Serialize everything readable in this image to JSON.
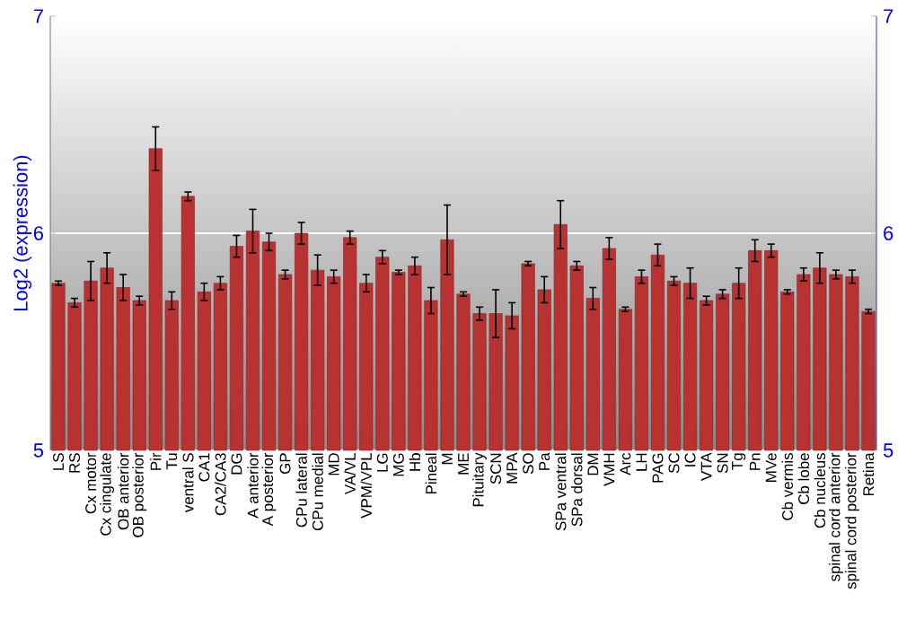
{
  "chart_data": {
    "type": "bar",
    "ylabel": "Log2 (expression)",
    "categories": [
      "LS",
      "RS",
      "Cx motor",
      "Cx cingulate",
      "OB anterior",
      "OB posterior",
      "Pir",
      "Tu",
      "ventral S",
      "CA1",
      "CA2/CA3",
      "DG",
      "A anterior",
      "A posterior",
      "GP",
      "CPu lateral",
      "CPu medial",
      "MD",
      "VA/VL",
      "VPM/VPL",
      "LG",
      "MG",
      "Hb",
      "Pineal",
      "M",
      "ME",
      "Pituitary",
      "SCN",
      "MPA",
      "SO",
      "Pa",
      "SPa ventral",
      "SPa dorsal",
      "DM",
      "VMH",
      "Arc",
      "LH",
      "PAG",
      "SC",
      "IC",
      "VTA",
      "SN",
      "Tg",
      "Pn",
      "MVe",
      "Cb vermis",
      "Cb lobe",
      "Cb nucleus",
      "spinal cord anterior",
      "spinal cord posterior",
      "Retina"
    ],
    "values": [
      5.77,
      5.68,
      5.78,
      5.84,
      5.75,
      5.69,
      6.39,
      5.69,
      6.17,
      5.73,
      5.77,
      5.94,
      6.01,
      5.96,
      5.81,
      6.0,
      5.83,
      5.8,
      5.98,
      5.77,
      5.89,
      5.82,
      5.85,
      5.69,
      5.97,
      5.72,
      5.63,
      5.63,
      5.62,
      5.86,
      5.74,
      6.04,
      5.85,
      5.7,
      5.93,
      5.65,
      5.8,
      5.9,
      5.78,
      5.77,
      5.69,
      5.72,
      5.77,
      5.92,
      5.92,
      5.73,
      5.81,
      5.84,
      5.81,
      5.8,
      5.64
    ],
    "errors": [
      0.01,
      0.02,
      0.09,
      0.07,
      0.06,
      0.02,
      0.1,
      0.04,
      0.02,
      0.04,
      0.03,
      0.05,
      0.1,
      0.04,
      0.02,
      0.05,
      0.07,
      0.03,
      0.03,
      0.04,
      0.03,
      0.01,
      0.04,
      0.06,
      0.16,
      0.01,
      0.03,
      0.11,
      0.06,
      0.01,
      0.06,
      0.11,
      0.02,
      0.05,
      0.05,
      0.01,
      0.03,
      0.05,
      0.02,
      0.07,
      0.02,
      0.02,
      0.07,
      0.05,
      0.03,
      0.01,
      0.03,
      0.07,
      0.02,
      0.03,
      0.01
    ],
    "color": "#b83232",
    "ylim": [
      5,
      7
    ],
    "yticks": [
      5,
      6,
      7
    ],
    "y2lim": [
      5,
      7
    ],
    "y2ticks": [
      5,
      6,
      7
    ],
    "grid": "y"
  }
}
